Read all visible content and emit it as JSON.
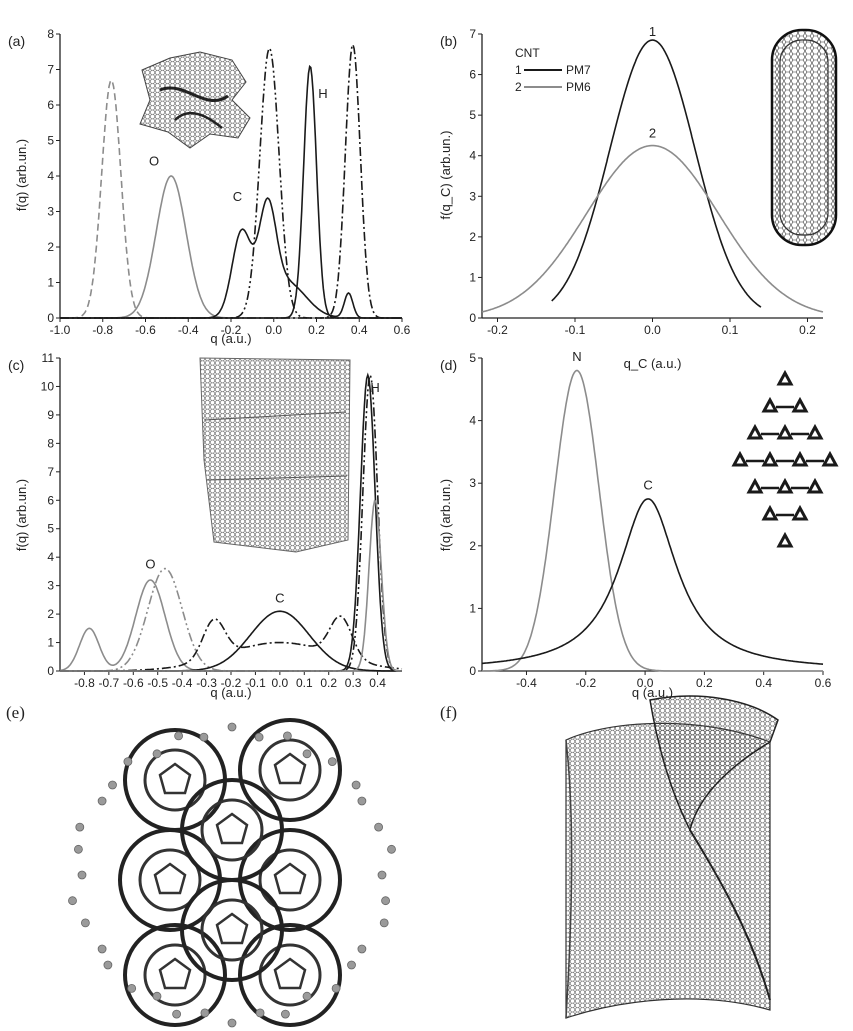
{
  "panel_labels": {
    "a": "(a)",
    "b": "(b)",
    "c": "(c)",
    "d": "(d)",
    "e": "(e)",
    "f": "(f)"
  },
  "colors": {
    "dark": "#1a1a1a",
    "gray": "#8c8c8c",
    "axis": "#222222"
  },
  "chart_data": [
    {
      "id": "a",
      "type": "line",
      "xlabel": "q (a.u.)",
      "ylabel": "f(q) (arb.un.)",
      "xlim": [
        -1.0,
        0.6
      ],
      "ylim": [
        0,
        8
      ],
      "xticks": [
        "-1.0",
        "-0.8",
        "-0.6",
        "-0.4",
        "-0.2",
        "0.0",
        "0.2",
        "0.4",
        "0.6"
      ],
      "yticks": [
        "0",
        "1",
        "2",
        "3",
        "4",
        "5",
        "6",
        "7",
        "8"
      ],
      "peak_labels": [
        {
          "text": "O",
          "x": -0.56,
          "y": 4.3
        },
        {
          "text": "C",
          "x": -0.17,
          "y": 3.3
        },
        {
          "text": "H",
          "x": 0.23,
          "y": 6.2
        }
      ],
      "series": [
        {
          "style": "dashed",
          "color": "gray",
          "peaks": [
            [
              -0.76,
              6.7,
              0.045
            ]
          ]
        },
        {
          "style": "solid",
          "color": "gray",
          "peaks": [
            [
              -0.48,
              4.0,
              0.07
            ]
          ]
        },
        {
          "style": "solid",
          "color": "dark",
          "peaks": [
            [
              -0.15,
              2.4,
              0.045
            ],
            [
              -0.03,
              2.7,
              0.04
            ],
            [
              0.06,
              1.0,
              0.09
            ],
            [
              0.35,
              0.7,
              0.02
            ]
          ]
        },
        {
          "style": "dashdotdot",
          "color": "dark",
          "peaks": [
            [
              -0.02,
              7.6,
              0.045
            ]
          ]
        },
        {
          "style": "solid",
          "color": "dark",
          "peaks": [
            [
              0.17,
              7.1,
              0.03
            ]
          ]
        },
        {
          "style": "dashdot",
          "color": "dark",
          "peaks": [
            [
              0.37,
              7.7,
              0.035
            ]
          ]
        }
      ]
    },
    {
      "id": "b",
      "type": "line",
      "xlabel": "q_C (a.u.)",
      "ylabel": "f(q_C) (arb.un.)",
      "xlim": [
        -0.22,
        0.22
      ],
      "ylim": [
        0,
        7
      ],
      "xticks": [
        "-0.2",
        "-0.1",
        "0.0",
        "0.1",
        "0.2"
      ],
      "yticks": [
        "0",
        "1",
        "2",
        "3",
        "4",
        "5",
        "6",
        "7"
      ],
      "legend": {
        "title": "CNT",
        "entries": [
          {
            "num": "1",
            "name": "PM7"
          },
          {
            "num": "2",
            "name": "PM6"
          }
        ]
      },
      "peak_labels": [
        {
          "text": "1",
          "x": 0.0,
          "y": 6.95
        },
        {
          "text": "2",
          "x": 0.0,
          "y": 4.45
        }
      ],
      "series": [
        {
          "name": "PM7",
          "style": "solid",
          "color": "dark",
          "range": [
            -0.13,
            0.14
          ],
          "peaks": [
            [
              0.0,
              6.85,
              0.055
            ]
          ]
        },
        {
          "name": "PM6",
          "style": "solid",
          "color": "gray",
          "range": [
            -0.22,
            0.22
          ],
          "peaks": [
            [
              0.0,
              4.25,
              0.085
            ]
          ]
        }
      ]
    },
    {
      "id": "c",
      "type": "line",
      "xlabel": "q (a.u.)",
      "ylabel": "f(q) (arb.un.)",
      "xlim": [
        -0.9,
        0.5
      ],
      "ylim": [
        0,
        11
      ],
      "xticks": [
        "-0.8",
        "-0.7",
        "-0.6",
        "-0.5",
        "-0.4",
        "-0.3",
        "-0.2",
        "-0.1",
        "0.0",
        "0.1",
        "0.2",
        "0.3",
        "0.4"
      ],
      "xtick_values": [
        -0.8,
        -0.7,
        -0.6,
        -0.5,
        -0.4,
        -0.3,
        -0.2,
        -0.1,
        0.0,
        0.1,
        0.2,
        0.3,
        0.4
      ],
      "yticks": [
        "0",
        "1",
        "2",
        "3",
        "4",
        "5",
        "6",
        "7",
        "8",
        "9",
        "10",
        "11"
      ],
      "peak_labels": [
        {
          "text": "O",
          "x": -0.53,
          "y": 3.6
        },
        {
          "text": "C",
          "x": 0.0,
          "y": 2.4
        },
        {
          "text": "H",
          "x": 0.39,
          "y": 9.8
        }
      ],
      "series": [
        {
          "style": "solid",
          "color": "gray",
          "peaks": [
            [
              -0.78,
              1.5,
              0.04
            ],
            [
              -0.53,
              3.2,
              0.06
            ]
          ]
        },
        {
          "style": "dashdotdot",
          "color": "gray",
          "peaks": [
            [
              -0.47,
              3.6,
              0.07
            ]
          ]
        },
        {
          "style": "solid",
          "color": "dark",
          "peaks": [
            [
              0.0,
              2.1,
              0.12
            ]
          ]
        },
        {
          "style": "dashdot",
          "color": "dark",
          "peaks": [
            [
              -0.27,
              1.35,
              0.045
            ],
            [
              0.0,
              1.0,
              0.22
            ],
            [
              0.25,
              1.4,
              0.045
            ]
          ]
        },
        {
          "style": "solid",
          "color": "dark",
          "peaks": [
            [
              0.36,
              10.4,
              0.03
            ]
          ]
        },
        {
          "style": "dashdotdot",
          "color": "dark",
          "peaks": [
            [
              0.37,
              10.4,
              0.03
            ]
          ]
        },
        {
          "style": "solid",
          "color": "gray",
          "peaks": [
            [
              0.39,
              6.0,
              0.025
            ]
          ]
        }
      ]
    },
    {
      "id": "d",
      "type": "line",
      "xlabel": "q (a.u.)",
      "ylabel": "f(q) (arb.un.)",
      "xlim": [
        -0.55,
        0.6
      ],
      "ylim": [
        0,
        5
      ],
      "xticks": [
        "-0.4",
        "-0.2",
        "0.0",
        "0.2",
        "0.4",
        "0.6"
      ],
      "xtick_values": [
        -0.4,
        -0.2,
        0.0,
        0.2,
        0.4,
        0.6
      ],
      "yticks": [
        "0",
        "1",
        "2",
        "3",
        "4",
        "5"
      ],
      "peak_labels": [
        {
          "text": "N",
          "x": -0.23,
          "y": 4.95
        },
        {
          "text": "C",
          "x": 0.01,
          "y": 2.9
        }
      ],
      "series": [
        {
          "style": "solid",
          "color": "gray",
          "peaks": [
            [
              -0.23,
              4.8,
              0.075
            ]
          ]
        },
        {
          "style": "solid",
          "color": "dark",
          "lorentz": [
            0.01,
            2.75,
            0.12
          ]
        }
      ]
    }
  ]
}
